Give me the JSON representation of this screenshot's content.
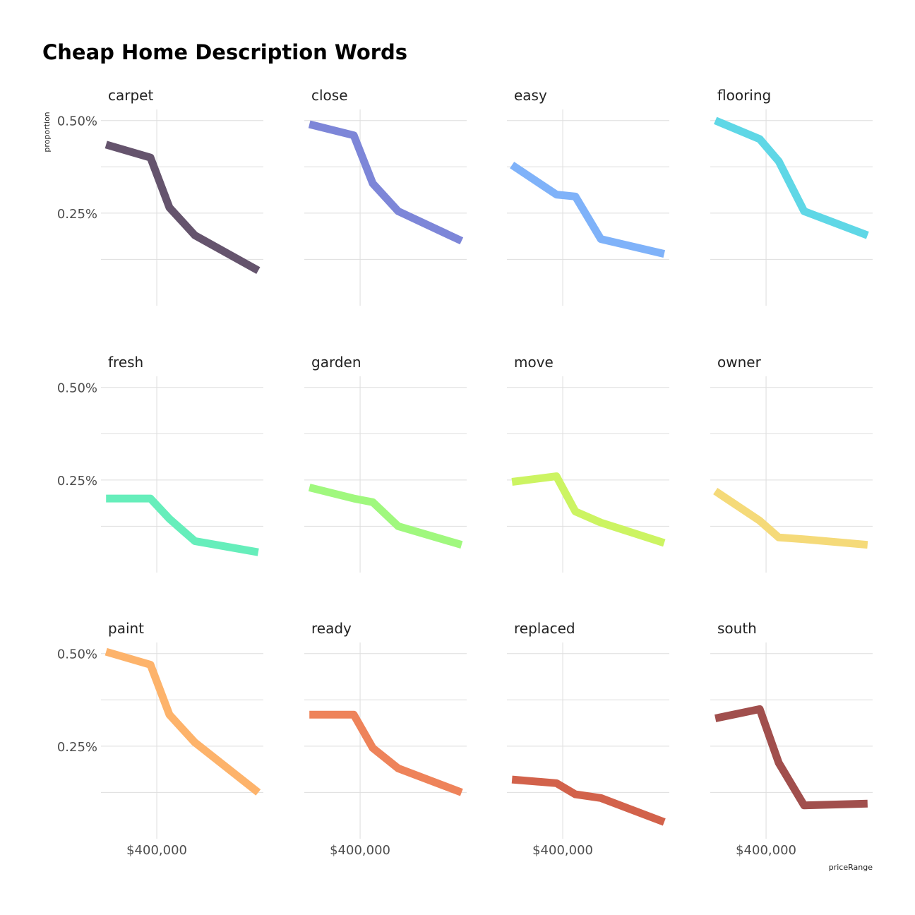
{
  "chart_data": {
    "type": "line",
    "title": "Cheap Home Description Words",
    "xlabel": "priceRange",
    "ylabel": "proportion",
    "xlim": [
      180000,
      820000
    ],
    "x_ticks": [
      400000
    ],
    "x_tick_labels": [
      "$400,000"
    ],
    "ylim": [
      0.0,
      0.53
    ],
    "y_ticks": [
      0.25,
      0.5
    ],
    "y_tick_labels": [
      "0.25%",
      "0.50%"
    ],
    "x": [
      200000,
      375000,
      450000,
      550000,
      800000
    ],
    "panels": [
      {
        "name": "carpet",
        "color": "#65546d",
        "values": [
          0.435,
          0.4,
          0.265,
          0.19,
          0.095
        ]
      },
      {
        "name": "close",
        "color": "#7d86d8",
        "values": [
          0.49,
          0.46,
          0.33,
          0.255,
          0.175
        ]
      },
      {
        "name": "easy",
        "color": "#7fb2f9",
        "values": [
          0.38,
          0.3,
          0.295,
          0.18,
          0.14
        ]
      },
      {
        "name": "flooring",
        "color": "#5fd7e6",
        "values": [
          0.5,
          0.45,
          0.39,
          0.255,
          0.19
        ]
      },
      {
        "name": "fresh",
        "color": "#66eebb",
        "values": [
          0.2,
          0.2,
          0.145,
          0.085,
          0.055
        ]
      },
      {
        "name": "garden",
        "color": "#a0f87e",
        "values": [
          0.23,
          0.2,
          0.19,
          0.125,
          0.075
        ]
      },
      {
        "name": "move",
        "color": "#ccf462",
        "values": [
          0.245,
          0.26,
          0.165,
          0.135,
          0.08
        ]
      },
      {
        "name": "owner",
        "color": "#f5da79",
        "values": [
          0.22,
          0.14,
          0.095,
          0.09,
          0.075
        ]
      },
      {
        "name": "paint",
        "color": "#fdb36b",
        "values": [
          0.505,
          0.47,
          0.335,
          0.26,
          0.125
        ]
      },
      {
        "name": "ready",
        "color": "#ee835a",
        "values": [
          0.335,
          0.335,
          0.245,
          0.19,
          0.125
        ]
      },
      {
        "name": "replaced",
        "color": "#d2624b",
        "values": [
          0.16,
          0.15,
          0.12,
          0.11,
          0.045
        ]
      },
      {
        "name": "south",
        "color": "#a14f4d",
        "values": [
          0.325,
          0.35,
          0.205,
          0.09,
          0.095
        ]
      }
    ],
    "grid": true,
    "legend": "none"
  }
}
